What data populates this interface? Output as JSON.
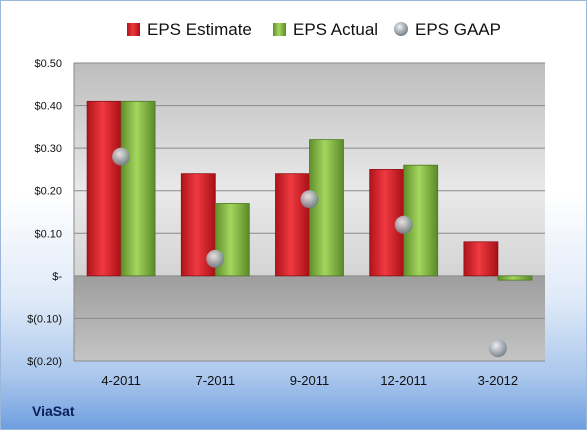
{
  "chart_data": {
    "type": "bar",
    "categories": [
      "4-2011",
      "7-2011",
      "9-2011",
      "12-2011",
      "3-2012"
    ],
    "series": [
      {
        "name": "EPS Estimate",
        "kind": "bar",
        "color": "#e0202a",
        "values": [
          0.41,
          0.24,
          0.24,
          0.25,
          0.08
        ]
      },
      {
        "name": "EPS Actual",
        "kind": "bar",
        "color": "#8bc34a",
        "values": [
          0.41,
          0.17,
          0.32,
          0.26,
          -0.01
        ]
      },
      {
        "name": "EPS GAAP",
        "kind": "scatter",
        "color": "#9aa3ad",
        "values": [
          0.28,
          0.04,
          0.18,
          0.12,
          -0.17
        ]
      }
    ],
    "yticks": [
      {
        "value": 0.5,
        "label": "$0.50"
      },
      {
        "value": 0.4,
        "label": "$0.40"
      },
      {
        "value": 0.3,
        "label": "$0.30"
      },
      {
        "value": 0.2,
        "label": "$0.20"
      },
      {
        "value": 0.1,
        "label": "$0.10"
      },
      {
        "value": 0.0,
        "label": "$-"
      },
      {
        "value": -0.1,
        "label": "$(0.10)"
      },
      {
        "value": -0.2,
        "label": "$(0.20)"
      }
    ],
    "ylim": [
      -0.2,
      0.5
    ],
    "grid": true,
    "legend_position": "top",
    "title": "",
    "xlabel": "",
    "ylabel": ""
  },
  "footer": {
    "company": "ViaSat"
  }
}
